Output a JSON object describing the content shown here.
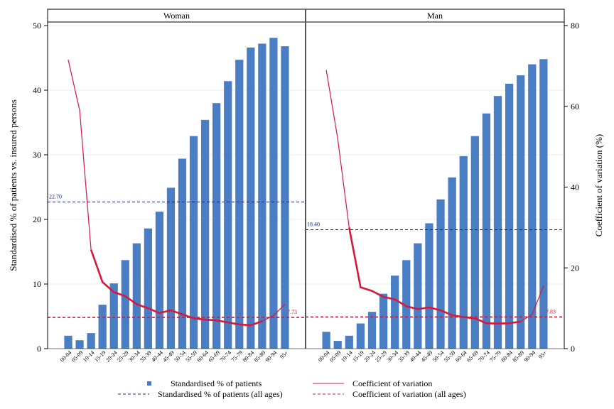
{
  "chart_data": {
    "type": "bar",
    "panels": [
      "Woman",
      "Man"
    ],
    "categories": [
      "00-04",
      "05-09",
      "10-14",
      "15-19",
      "20-24",
      "25-29",
      "30-34",
      "35-39",
      "40-44",
      "45-49",
      "50-54",
      "55-59",
      "60-64",
      "65-69",
      "70-74",
      "75-79",
      "80-84",
      "85-89",
      "90-94",
      "95+"
    ],
    "ylabel": "Standardised % of patients vs. insured persons",
    "y2label": "Coefficient of variation (%)",
    "ylim": [
      0,
      50
    ],
    "y2lim": [
      0,
      80
    ],
    "yticks": [
      "0",
      "10",
      "20",
      "30",
      "40",
      "50"
    ],
    "y2ticks": [
      "0",
      "20",
      "40",
      "60",
      "80"
    ],
    "grid": true,
    "legend_position": "bottom",
    "series": [
      {
        "name": "Standardised % of patients",
        "panel": "Woman",
        "kind": "bar",
        "color": "#4A7EC4",
        "values": [
          2.0,
          1.3,
          2.4,
          6.8,
          10.1,
          13.7,
          16.3,
          18.6,
          21.2,
          24.9,
          29.4,
          32.9,
          35.4,
          38.0,
          41.4,
          44.7,
          46.6,
          47.2,
          48.1,
          46.8
        ]
      },
      {
        "name": "Standardised % of patients",
        "panel": "Man",
        "kind": "bar",
        "color": "#4A7EC4",
        "values": [
          2.6,
          1.2,
          2.0,
          3.9,
          5.7,
          8.5,
          11.3,
          13.7,
          16.3,
          19.4,
          23.1,
          26.5,
          29.8,
          32.9,
          36.4,
          39.1,
          41.0,
          42.3,
          44.0,
          44.8
        ]
      },
      {
        "name": "Coefficient of variation",
        "panel": "Woman",
        "kind": "line",
        "axis": "y2",
        "color": "#D6183C",
        "values": [
          71.5,
          59.0,
          24.5,
          16.5,
          14.0,
          13.0,
          11.0,
          10.0,
          8.8,
          9.5,
          8.5,
          7.5,
          7.2,
          7.0,
          6.5,
          6.0,
          5.8,
          6.8,
          8.2,
          11.0
        ]
      },
      {
        "name": "Coefficient of variation",
        "panel": "Man",
        "kind": "line",
        "axis": "y2",
        "color": "#D6183C",
        "values": [
          69.0,
          52.0,
          30.0,
          15.2,
          14.3,
          12.8,
          12.2,
          10.5,
          9.8,
          10.2,
          9.5,
          8.3,
          7.8,
          7.5,
          6.3,
          6.2,
          6.3,
          6.7,
          8.5,
          15.5
        ]
      },
      {
        "name": "Standardised % of patients (all ages)",
        "kind": "hline",
        "color": "#1A237E",
        "panel_values": {
          "Woman": 22.7,
          "Man": 18.4
        },
        "labels": {
          "Woman": "22.70",
          "Man": "18.40"
        }
      },
      {
        "name": "Coefficient of variation (all ages)",
        "kind": "hline",
        "axis": "y2",
        "color": "#D6183C",
        "panel_values": {
          "Woman": 7.73,
          "Man": 7.83
        },
        "labels": {
          "Woman": "7.73",
          "Man": "7.83"
        }
      }
    ],
    "legend": [
      "Standardised % of patients",
      "Coefficient of variation",
      "Standardised % of patients (all ages)",
      "Coefficient of variation (all ages)"
    ]
  }
}
